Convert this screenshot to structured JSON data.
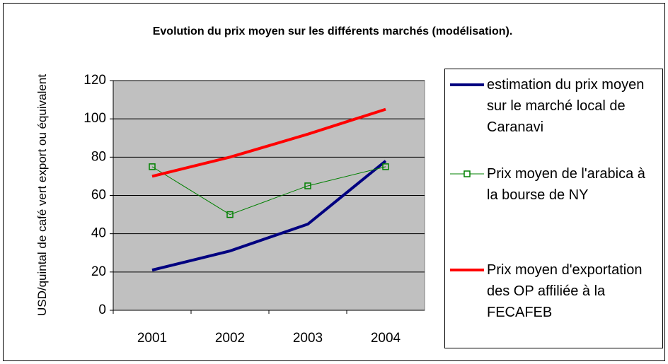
{
  "chart_data": {
    "type": "line",
    "title": "Evolution du prix moyen sur les différents marchés (modélisation).",
    "ylabel": "USD/quintal de café vert export ou équivalent",
    "categories": [
      "2001",
      "2002",
      "2003",
      "2004"
    ],
    "series": [
      {
        "name": "estimation du prix moyen sur le marché local de Caranavi",
        "color": "#000080",
        "values": [
          21,
          31,
          45,
          78
        ]
      },
      {
        "name": "Prix moyen de l'arabica à la bourse de NY",
        "color": "#008000",
        "values": [
          75,
          50,
          65,
          75
        ],
        "marker": "square"
      },
      {
        "name": "Prix moyen d'exportation des OP affiliée à la FECAFEB",
        "color": "#ff0000",
        "values": [
          70,
          80,
          92,
          105
        ]
      }
    ],
    "ylim": [
      0,
      120
    ],
    "yticks": [
      0,
      20,
      40,
      60,
      80,
      100,
      120
    ],
    "grid": true,
    "legend": "right"
  }
}
